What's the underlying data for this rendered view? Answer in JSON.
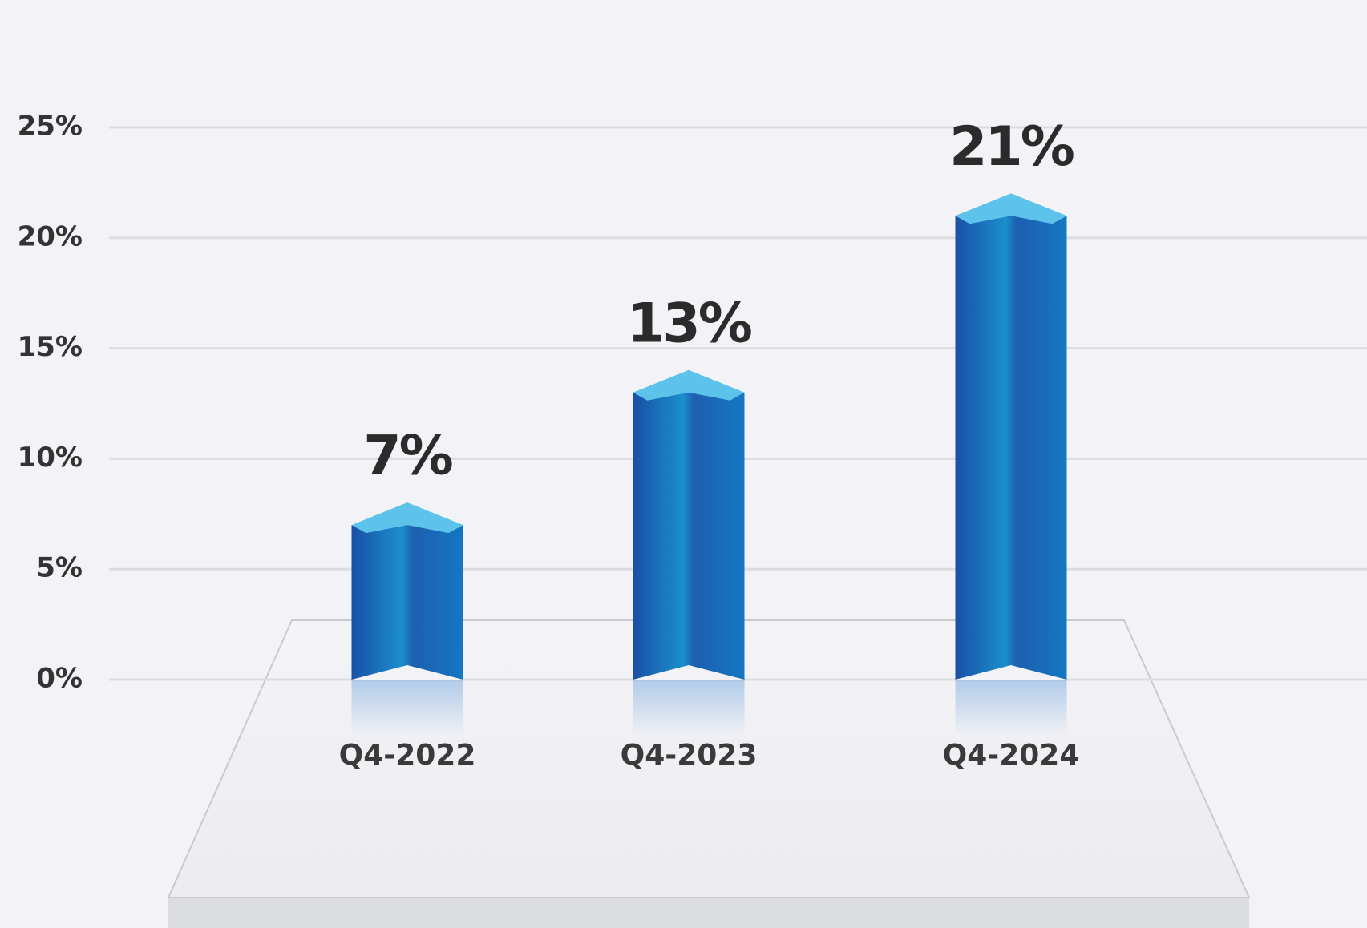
{
  "chart_data": {
    "type": "bar",
    "categories": [
      "Q4-2022",
      "Q4-2023",
      "Q4-2024"
    ],
    "values": [
      7,
      13,
      21
    ],
    "value_labels": [
      "7%",
      "13%",
      "21%"
    ],
    "color": "#1a6fbf",
    "ylim": [
      0,
      25
    ],
    "yticks": [
      {
        "value": 0,
        "label": "0%"
      },
      {
        "value": 5,
        "label": "5%"
      },
      {
        "value": 10,
        "label": "10%"
      },
      {
        "value": 15,
        "label": "15%"
      },
      {
        "value": 20,
        "label": "20%"
      },
      {
        "value": 25,
        "label": "25%"
      }
    ],
    "grid": true
  }
}
